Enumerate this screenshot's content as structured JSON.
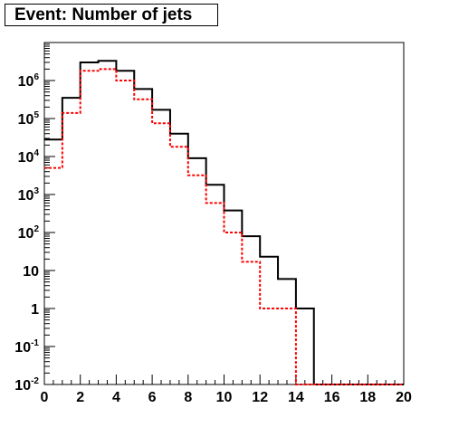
{
  "chart_data": {
    "type": "step",
    "title": "Event: Number of jets",
    "xlabel": "",
    "ylabel": "",
    "xlim": [
      0,
      20
    ],
    "ylim": [
      0.01,
      10000000
    ],
    "yscale": "log",
    "grid": false,
    "bin_edges": [
      0,
      1,
      2,
      3,
      4,
      5,
      6,
      7,
      8,
      9,
      10,
      11,
      12,
      13,
      14,
      15,
      16,
      17,
      18,
      19,
      20
    ],
    "x_tick_labels": [
      "0",
      "2",
      "4",
      "6",
      "8",
      "10",
      "12",
      "14",
      "16",
      "18",
      "20"
    ],
    "y_ticks": [
      {
        "value": 0.01,
        "base": "10",
        "exp": "-2"
      },
      {
        "value": 0.1,
        "base": "10",
        "exp": "-1"
      },
      {
        "value": 1,
        "base": "1",
        "exp": ""
      },
      {
        "value": 10,
        "base": "10",
        "exp": ""
      },
      {
        "value": 100,
        "base": "10",
        "exp": "2"
      },
      {
        "value": 1000,
        "base": "10",
        "exp": "3"
      },
      {
        "value": 10000,
        "base": "10",
        "exp": "4"
      },
      {
        "value": 100000,
        "base": "10",
        "exp": "5"
      },
      {
        "value": 1000000,
        "base": "10",
        "exp": "6"
      }
    ],
    "series": [
      {
        "color": "#000000",
        "style": "solid",
        "values": [
          28000,
          350000,
          3000000,
          3300000,
          1800000,
          600000,
          170000,
          40000,
          9000,
          1800,
          380,
          80,
          23,
          6,
          1,
          0,
          0,
          0,
          0,
          0
        ]
      },
      {
        "color": "#ff0000",
        "style": "dashed",
        "values": [
          5000,
          140000,
          1800000,
          2000000,
          1000000,
          320000,
          75000,
          18000,
          3200,
          600,
          100,
          17,
          1,
          1,
          0,
          0,
          0,
          0,
          0,
          0
        ]
      }
    ]
  }
}
